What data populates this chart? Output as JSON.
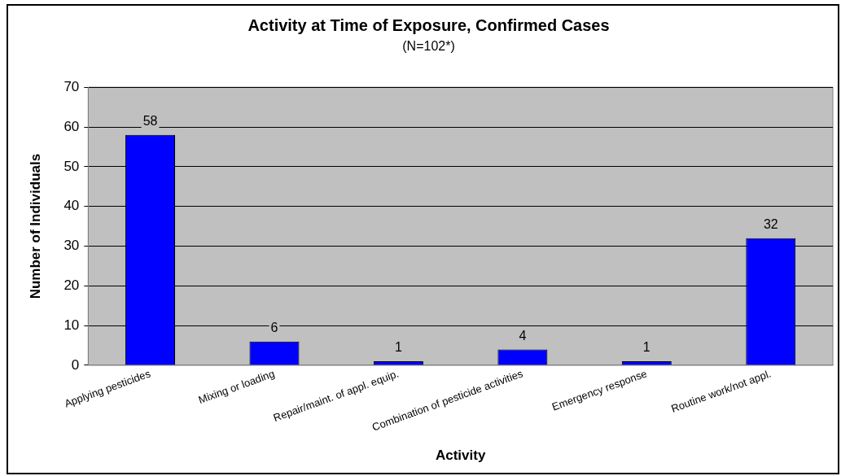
{
  "chart_data": {
    "type": "bar",
    "title": "Activity at Time of Exposure, Confirmed Cases",
    "subtitle": "(N=102*)",
    "xlabel": "Activity",
    "ylabel": "Number of Individuals",
    "categories": [
      "Applying pesticides",
      "Mixing or loading",
      "Repair/maint. of appl. equip.",
      "Combination of pesticide activities",
      "Emergency response",
      "Routine work/not appl."
    ],
    "values": [
      58,
      6,
      1,
      4,
      1,
      32
    ],
    "color": "#0000ff",
    "ylim": [
      0,
      70
    ],
    "yticks": [
      0,
      10,
      20,
      30,
      40,
      50,
      60,
      70
    ],
    "grid": "y",
    "data_labels": true,
    "legend": false
  }
}
